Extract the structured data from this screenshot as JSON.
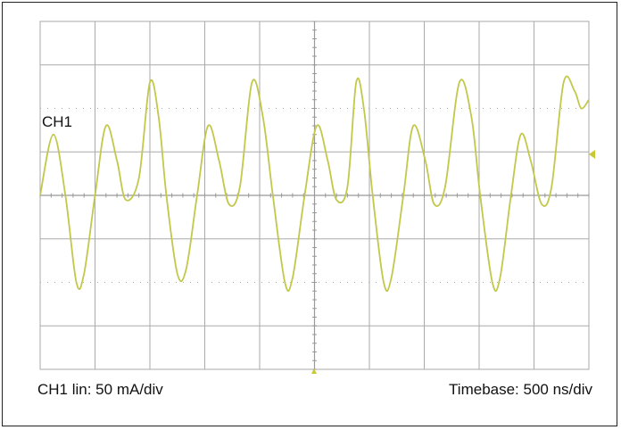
{
  "labels": {
    "channel": "CH1",
    "scale": "CH1 lin: 50 mA/div",
    "timebase": "Timebase: 500 ns/div"
  },
  "colors": {
    "trace": "#c2c84a",
    "grid": "#aaaaaa",
    "axis": "#999999",
    "marker": "#c8c832"
  },
  "chart_data": {
    "type": "line",
    "title": "",
    "xlabel": "",
    "ylabel": "",
    "grid": true,
    "divisions": {
      "x": 10,
      "y": 8
    },
    "xlim": [
      0,
      5000
    ],
    "ylim": [
      -200,
      200
    ],
    "x_unit": "ns",
    "y_unit": "mA",
    "series": [
      {
        "points": [
          [
            0,
            0
          ],
          [
            120,
            70
          ],
          [
            230,
            0
          ],
          [
            330,
            -100
          ],
          [
            400,
            -90
          ],
          [
            500,
            0
          ],
          [
            600,
            80
          ],
          [
            700,
            40
          ],
          [
            780,
            -5
          ],
          [
            900,
            20
          ],
          [
            1000,
            130
          ],
          [
            1080,
            90
          ],
          [
            1150,
            0
          ],
          [
            1250,
            -90
          ],
          [
            1330,
            -85
          ],
          [
            1430,
            0
          ],
          [
            1530,
            80
          ],
          [
            1630,
            40
          ],
          [
            1720,
            -10
          ],
          [
            1820,
            10
          ],
          [
            1930,
            130
          ],
          [
            2030,
            90
          ],
          [
            2120,
            0
          ],
          [
            2230,
            -100
          ],
          [
            2300,
            -95
          ],
          [
            2410,
            0
          ],
          [
            2520,
            80
          ],
          [
            2620,
            40
          ],
          [
            2700,
            -5
          ],
          [
            2800,
            10
          ],
          [
            2880,
            130
          ],
          [
            2950,
            100
          ],
          [
            3030,
            0
          ],
          [
            3130,
            -100
          ],
          [
            3200,
            -95
          ],
          [
            3310,
            0
          ],
          [
            3400,
            80
          ],
          [
            3510,
            40
          ],
          [
            3590,
            -10
          ],
          [
            3690,
            10
          ],
          [
            3820,
            130
          ],
          [
            3930,
            90
          ],
          [
            4010,
            0
          ],
          [
            4120,
            -100
          ],
          [
            4190,
            -95
          ],
          [
            4290,
            0
          ],
          [
            4380,
            70
          ],
          [
            4470,
            40
          ],
          [
            4570,
            -10
          ],
          [
            4660,
            10
          ],
          [
            4770,
            130
          ],
          [
            4870,
            120
          ],
          [
            4930,
            100
          ],
          [
            5000,
            110
          ]
        ]
      }
    ]
  }
}
